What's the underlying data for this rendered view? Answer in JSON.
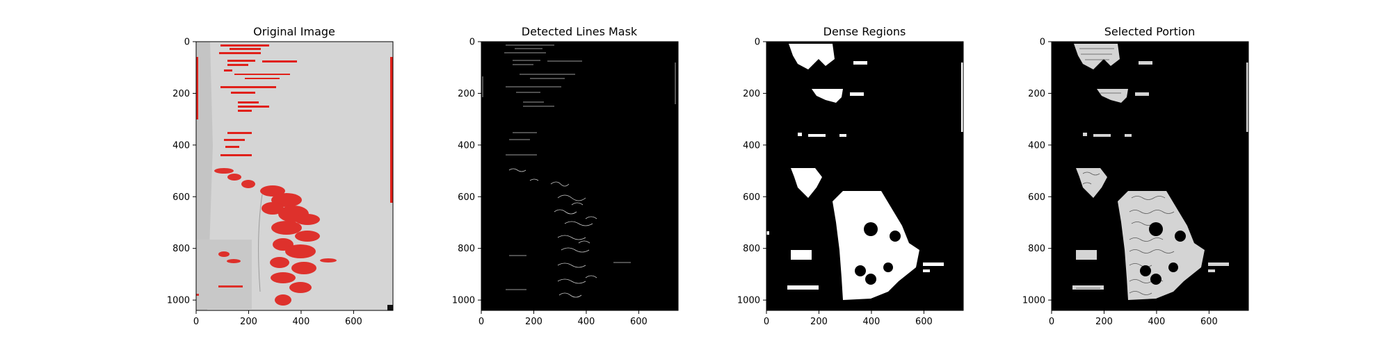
{
  "figure": {
    "panels": [
      {
        "title": "Original Image",
        "x_ticks": [
          "0",
          "200",
          "400",
          "600"
        ],
        "y_ticks": [
          "0",
          "200",
          "400",
          "600",
          "800",
          "1000"
        ]
      },
      {
        "title": "Detected Lines Mask",
        "x_ticks": [
          "0",
          "200",
          "400",
          "600"
        ],
        "y_ticks": [
          "0",
          "200",
          "400",
          "600",
          "800",
          "1000"
        ]
      },
      {
        "title": "Dense Regions",
        "x_ticks": [
          "0",
          "200",
          "400",
          "600"
        ],
        "y_ticks": [
          "0",
          "200",
          "400",
          "600",
          "800",
          "1000"
        ]
      },
      {
        "title": "Selected Portion",
        "x_ticks": [
          "0",
          "200",
          "400",
          "600"
        ],
        "y_ticks": [
          "0",
          "200",
          "400",
          "600",
          "800",
          "1000"
        ]
      }
    ],
    "colors": {
      "page_gray": "#d6d6d6",
      "detection_red": "#e0201a",
      "mask_black": "#000000",
      "mask_white": "#ffffff",
      "ink": "#444444"
    }
  }
}
